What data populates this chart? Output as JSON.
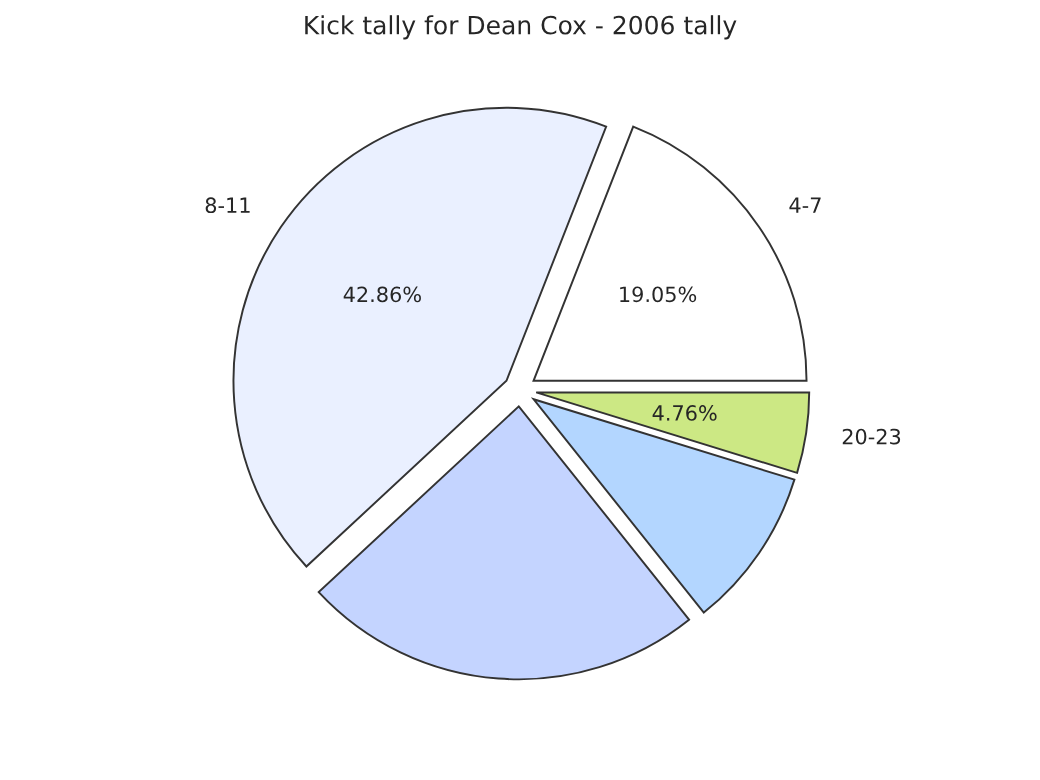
{
  "chart_data": {
    "type": "pie",
    "title": "Kick tally for Dean Cox - 2006 tally",
    "categories": [
      "4-7",
      "8-11",
      null,
      null,
      "20-23"
    ],
    "values": [
      19.05,
      42.86,
      23.81,
      9.52,
      4.76
    ],
    "colors": [
      "#ffffff",
      "#eaf0ff",
      "#c4d4ff",
      "#b3d6ff",
      "#cce884"
    ],
    "value_labels": [
      "19.05%",
      "42.86%",
      null,
      null,
      "4.76%"
    ]
  }
}
